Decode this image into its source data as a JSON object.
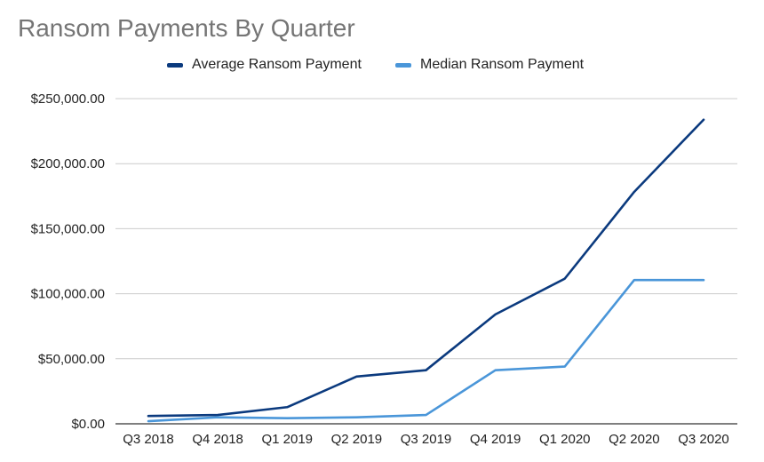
{
  "chart_data": {
    "type": "line",
    "title": "Ransom Payments By Quarter",
    "xlabel": "",
    "ylabel": "",
    "categories": [
      "Q3 2018",
      "Q4 2018",
      "Q1 2019",
      "Q2 2019",
      "Q3 2019",
      "Q4 2019",
      "Q1 2020",
      "Q2 2020",
      "Q3 2020"
    ],
    "yticks": [
      "$0.00",
      "$50,000.00",
      "$100,000.00",
      "$150,000.00",
      "$200,000.00",
      "$250,000.00"
    ],
    "ylim": [
      0,
      250000
    ],
    "grid": true,
    "legend_position": "top",
    "series": [
      {
        "name": "Average Ransom Payment",
        "color": "#0b3a7e",
        "values": [
          6000,
          6800,
          12800,
          36300,
          41200,
          84100,
          111600,
          178300,
          233800
        ]
      },
      {
        "name": "Median Ransom Payment",
        "color": "#4a96d9",
        "values": [
          2000,
          5000,
          4300,
          5000,
          6800,
          41200,
          44000,
          110500,
          110500
        ]
      }
    ]
  }
}
